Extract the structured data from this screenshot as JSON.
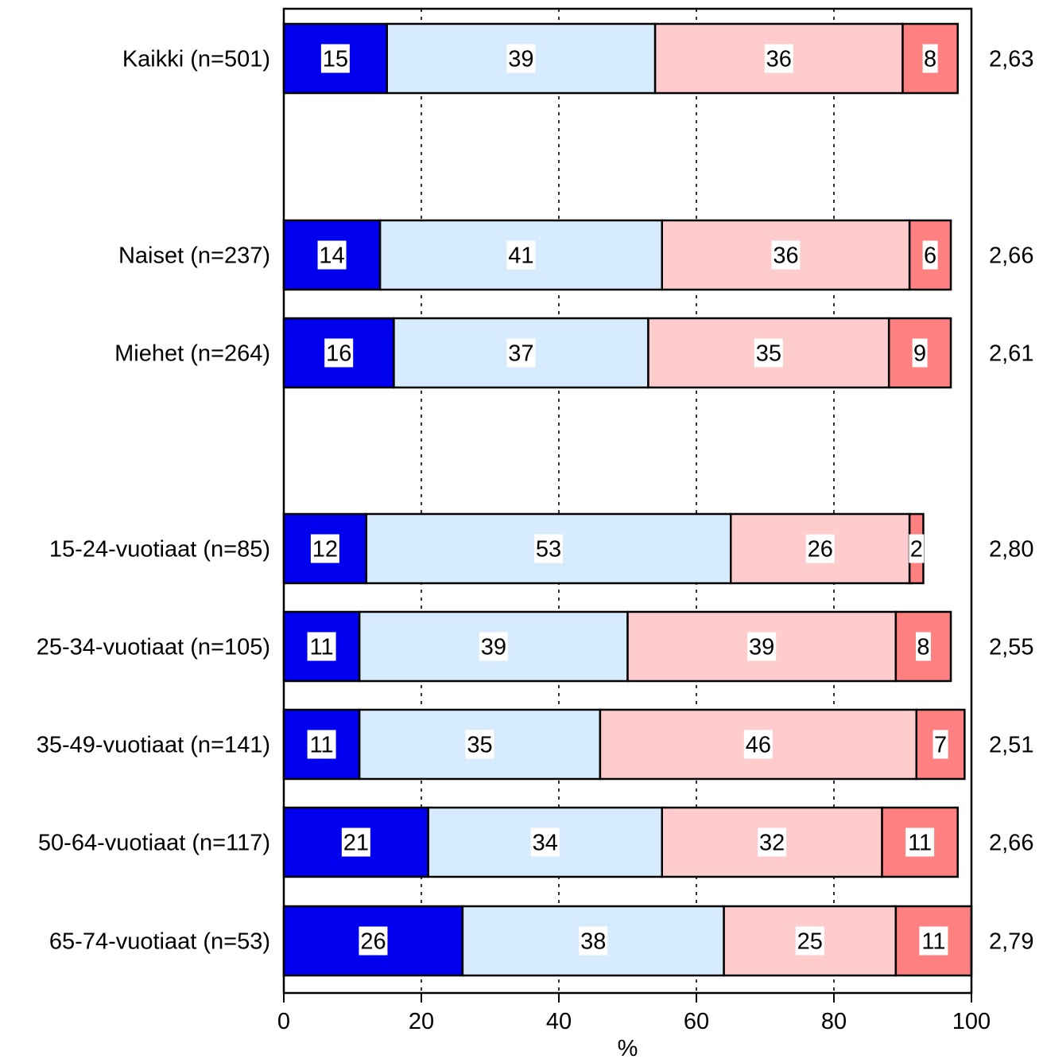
{
  "chart_data": {
    "type": "bar",
    "orientation": "horizontal",
    "stacked": true,
    "categories": [
      "Kaikki (n=501)",
      "Naiset (n=237)",
      "Miehet (n=264)",
      "15-24-vuotiaat (n=85)",
      "25-34-vuotiaat (n=105)",
      "35-49-vuotiaat (n=141)",
      "50-64-vuotiaat (n=117)",
      "65-74-vuotiaat (n=53)"
    ],
    "series": [
      {
        "color": "#0000ee",
        "values": [
          15,
          14,
          16,
          12,
          11,
          11,
          21,
          26
        ]
      },
      {
        "color": "#d6ecfe",
        "values": [
          39,
          41,
          37,
          53,
          39,
          35,
          34,
          38
        ]
      },
      {
        "color": "#fecccc",
        "values": [
          36,
          36,
          35,
          26,
          39,
          46,
          32,
          25
        ]
      },
      {
        "color": "#fe8080",
        "values": [
          8,
          6,
          9,
          2,
          8,
          7,
          11,
          11
        ]
      }
    ],
    "segment_labels": [
      [
        "15",
        "39",
        "36",
        "8"
      ],
      [
        "14",
        "41",
        "36",
        "6"
      ],
      [
        "16",
        "37",
        "35",
        "9"
      ],
      [
        "12",
        "53",
        "26",
        "2"
      ],
      [
        "11",
        "39",
        "39",
        "8"
      ],
      [
        "11",
        "35",
        "46",
        "7"
      ],
      [
        "21",
        "34",
        "32",
        "11"
      ],
      [
        "26",
        "38",
        "25",
        "11"
      ]
    ],
    "means": [
      "2,63",
      "2,66",
      "2,61",
      "2,80",
      "2,55",
      "2,51",
      "2,66",
      "2,79"
    ],
    "xlabel": "%",
    "xlim": [
      0,
      100
    ],
    "xticks": [
      0,
      20,
      40,
      60,
      80,
      100
    ],
    "xtick_labels": [
      "0",
      "20",
      "40",
      "60",
      "80",
      "100"
    ],
    "grid": "vertical dotted",
    "legend": "none"
  }
}
